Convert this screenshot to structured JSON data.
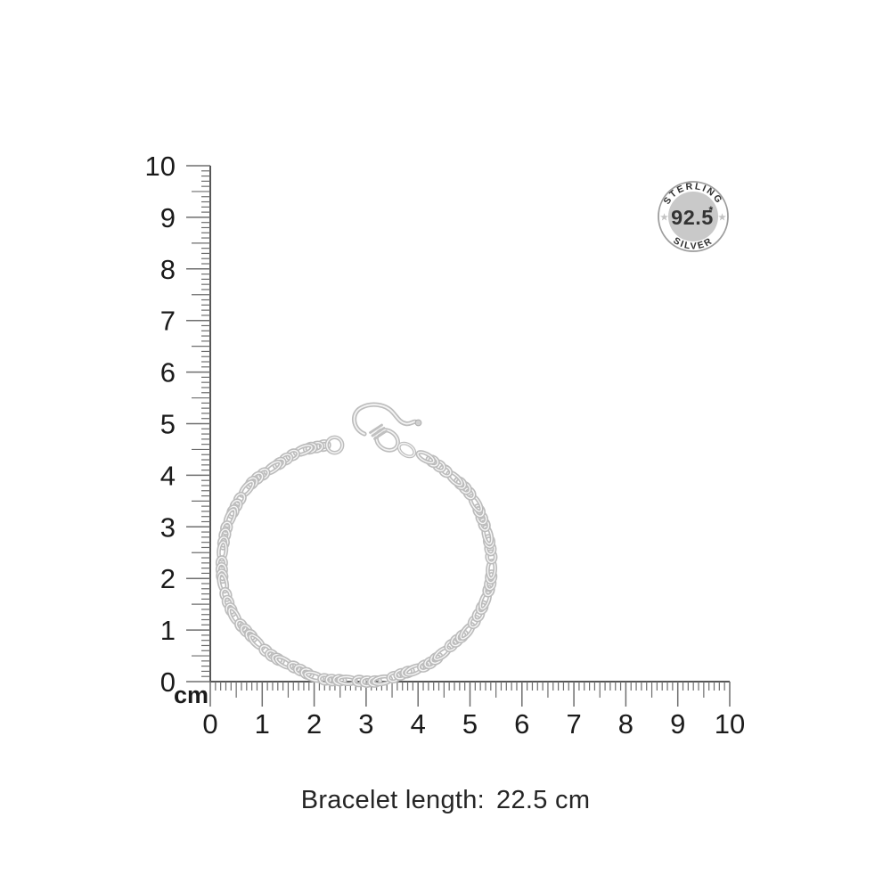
{
  "page": {
    "background_color": "#ffffff"
  },
  "ruler": {
    "unit_label": "cm",
    "x_labels": [
      "0",
      "1",
      "2",
      "3",
      "4",
      "5",
      "6",
      "7",
      "8",
      "9",
      "10"
    ],
    "y_labels": [
      "10",
      "9",
      "8",
      "7",
      "6",
      "5",
      "4",
      "3",
      "2",
      "1",
      "0"
    ],
    "line_color": "#565656",
    "tick_color": "#6e6e6e",
    "number_color": "#1b1b1b"
  },
  "badge": {
    "top_text": "STERLING",
    "bottom_text": "SILVER",
    "center_value": "92.5",
    "asterisk": "*",
    "side_star": "★",
    "colors": {
      "ring_fill": "#ffffff",
      "border": "#9d9d9d",
      "inner_circle": "#c9c9c9",
      "text": "#2d2d2d",
      "value_text": "#333333",
      "star": "#c3c3c3"
    }
  },
  "bracelet": {
    "description": "silver figaro chain bracelet with S-hook clasp",
    "colors": {
      "link_outer": "#bdbdbd",
      "link_highlight": "#f5f5f5"
    }
  },
  "caption": {
    "label": "Bracelet length:",
    "value": "22.5 cm",
    "color": "#252525"
  }
}
